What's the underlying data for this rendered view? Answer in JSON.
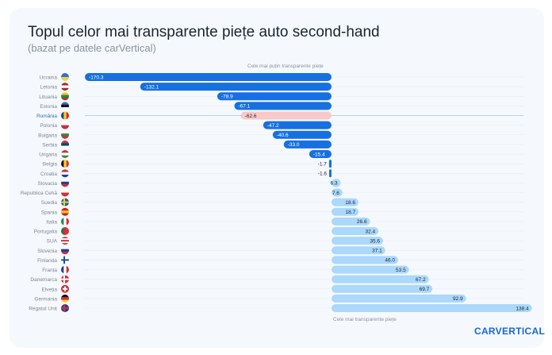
{
  "title": "Topul celor mai transparente piețe auto second-hand",
  "subtitle": "(bazat pe datele carVertical)",
  "logo": "carVertical",
  "chart_data": {
    "type": "bar",
    "orientation": "horizontal",
    "annotation_top": "Cele mai puțin transparente piețe",
    "annotation_bottom": "Cele mai transparente piețe",
    "highlight": "România",
    "colors": {
      "negative": "#1670e0",
      "positive": "#abd8fb",
      "highlight": "#f8c9c9",
      "highlight_label": "#2f6fb5"
    },
    "grid": true,
    "categories": [
      "Ucraina",
      "Letonia",
      "Lituania",
      "Estonia",
      "România",
      "Polonia",
      "Bulgaria",
      "Serbia",
      "Ungaria",
      "Belgia",
      "Croatia",
      "Slovacia",
      "Republica Cehă",
      "Suedia",
      "Spania",
      "Italia",
      "Portugalia",
      "SUA",
      "Slovenia",
      "Finlanda",
      "Franța",
      "Danemarca",
      "Elveția",
      "Germania",
      "Regatul Unit"
    ],
    "values": [
      -170.3,
      -132.1,
      -78.9,
      -67.1,
      -62.6,
      -47.2,
      -40.6,
      -33.0,
      -15.4,
      -1.7,
      -1.6,
      6.3,
      7.6,
      18.6,
      18.7,
      26.6,
      32.4,
      35.6,
      37.1,
      46.0,
      53.5,
      67.2,
      69.7,
      92.9,
      138.4
    ],
    "flags": [
      "ua",
      "lv",
      "lt",
      "ee",
      "ro",
      "pl",
      "bg",
      "rs",
      "hu",
      "be",
      "hr",
      "sk",
      "cz",
      "se",
      "es",
      "it",
      "pt",
      "us",
      "si",
      "fi",
      "fr",
      "dk",
      "ch",
      "de",
      "gb"
    ]
  }
}
